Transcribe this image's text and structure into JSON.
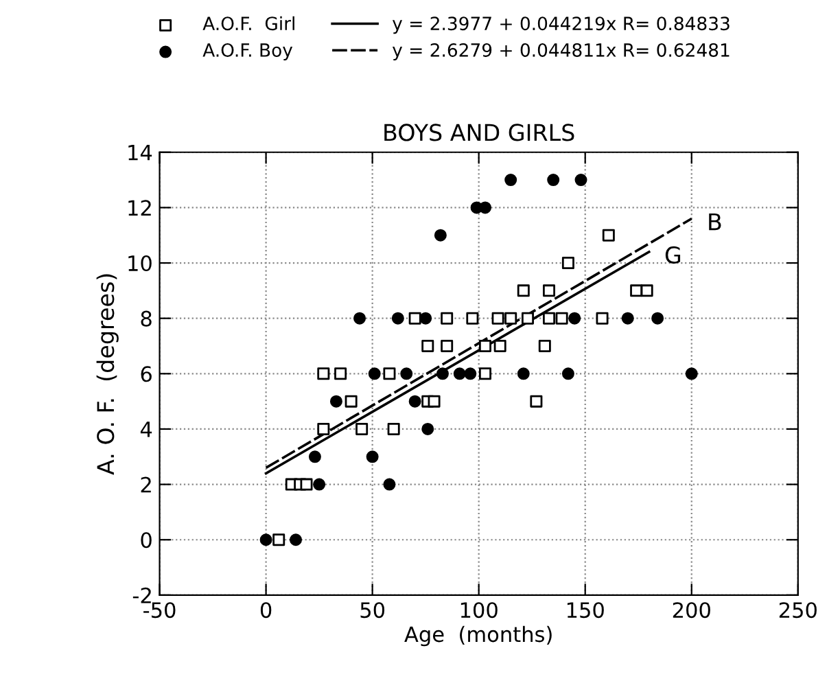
{
  "chart_data": {
    "type": "scatter",
    "title": "BOYS AND GIRLS",
    "xlabel": "Age  (months)",
    "ylabel": "A. O. F.  (degrees)",
    "xlim": [
      -50,
      250
    ],
    "ylim": [
      -2,
      14
    ],
    "xticks": [
      -50,
      0,
      50,
      100,
      150,
      200,
      250
    ],
    "yticks": [
      -2,
      0,
      2,
      4,
      6,
      8,
      10,
      12,
      14
    ],
    "grid": true,
    "legend": "top",
    "series": [
      {
        "name": "A.O.F.  Girl",
        "marker": "square",
        "color": "#000000",
        "x": [
          6,
          12,
          16,
          19,
          27,
          45,
          60,
          40,
          76,
          79,
          127,
          27,
          35,
          58,
          103,
          76,
          85,
          103,
          110,
          131,
          70,
          85,
          97,
          109,
          115,
          123,
          133,
          139,
          158,
          121,
          133,
          174,
          179,
          142,
          161
        ],
        "values": [
          0,
          2,
          2,
          2,
          4,
          4,
          4,
          5,
          5,
          5,
          5,
          6,
          6,
          6,
          6,
          7,
          7,
          7,
          7,
          7,
          8,
          8,
          8,
          8,
          8,
          8,
          8,
          8,
          8,
          9,
          9,
          9,
          9,
          10,
          11
        ]
      },
      {
        "name": "A.O.F. Boy",
        "marker": "circle",
        "color": "#000000",
        "x": [
          0,
          14,
          25,
          58,
          23,
          50,
          76,
          33,
          70,
          51,
          66,
          83,
          91,
          96,
          121,
          142,
          200,
          44,
          62,
          75,
          145,
          170,
          184,
          82,
          99,
          103,
          115,
          135,
          148
        ],
        "values": [
          0,
          0,
          2,
          2,
          3,
          3,
          4,
          5,
          5,
          6,
          6,
          6,
          6,
          6,
          6,
          6,
          6,
          8,
          8,
          8,
          8,
          8,
          8,
          11,
          12,
          12,
          13,
          13,
          13
        ]
      },
      {
        "name": "y = 2.3977 + 0.044219x R= 0.84833",
        "type": "line",
        "line_style": "solid",
        "color": "#000000",
        "x": [
          0,
          180
        ],
        "values": [
          2.4,
          10.4
        ]
      },
      {
        "name": "y = 2.6279 + 0.044811x R= 0.62481",
        "type": "line",
        "line_style": "dashed",
        "color": "#000000",
        "x": [
          0,
          200
        ],
        "values": [
          2.6,
          11.6
        ]
      }
    ],
    "annotations": [
      {
        "text": "B",
        "x": 200,
        "y": 11.6
      },
      {
        "text": "G",
        "x": 180,
        "y": 10.4
      }
    ]
  }
}
